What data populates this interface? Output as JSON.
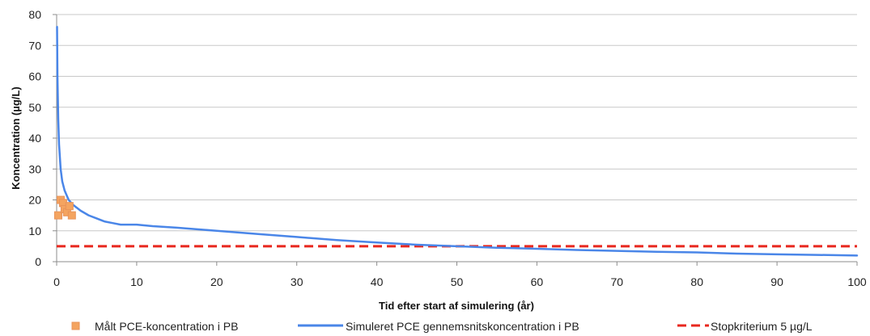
{
  "chart_data": {
    "type": "line",
    "xlabel": "Tid efter start af simulering (år)",
    "ylabel": "Koncentration (µg/L)",
    "xlim": [
      0,
      100
    ],
    "ylim": [
      0,
      80
    ],
    "x_ticks": [
      "0",
      "10",
      "20",
      "30",
      "40",
      "50",
      "60",
      "70",
      "80",
      "90",
      "100"
    ],
    "y_ticks": [
      "0",
      "10",
      "20",
      "30",
      "40",
      "50",
      "60",
      "70",
      "80"
    ],
    "grid": "horizontal",
    "legend_position": "bottom",
    "series": [
      {
        "name": "Målt PCE-koncentration i PB",
        "type": "scatter",
        "color": "#F4A460",
        "x": [
          0.2,
          0.5,
          0.8,
          1.0,
          1.3,
          1.6,
          1.9
        ],
        "y": [
          15,
          20,
          19,
          17,
          16,
          18,
          15
        ]
      },
      {
        "name": "Simuleret PCE gennemsnitskoncentration i PB",
        "type": "line",
        "color": "#4A86E8",
        "x": [
          0.05,
          0.1,
          0.2,
          0.3,
          0.5,
          0.7,
          1,
          1.5,
          2,
          3,
          4,
          5,
          6,
          7,
          8,
          10,
          12,
          15,
          20,
          25,
          30,
          35,
          40,
          45,
          50,
          55,
          60,
          65,
          70,
          75,
          80,
          85,
          90,
          95,
          100
        ],
        "y": [
          76,
          60,
          46,
          38,
          30,
          26,
          23,
          20,
          18.5,
          16.5,
          15,
          14,
          13,
          12.5,
          12,
          12,
          11.5,
          11,
          10,
          9,
          8,
          7,
          6.2,
          5.5,
          5,
          4.5,
          4.2,
          3.8,
          3.5,
          3.2,
          3,
          2.6,
          2.4,
          2.2,
          2
        ]
      },
      {
        "name": "Stopkriterium 5 µg/L",
        "type": "line",
        "style": "dashed",
        "color": "#E8281E",
        "x": [
          0,
          100
        ],
        "y": [
          5,
          5
        ]
      }
    ]
  }
}
